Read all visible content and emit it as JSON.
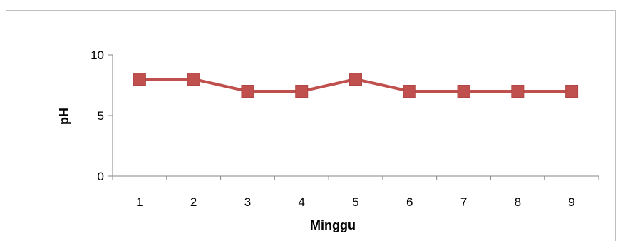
{
  "chart_data": {
    "type": "line",
    "title": "",
    "xlabel": "Minggu",
    "ylabel": "pH",
    "categories": [
      "1",
      "2",
      "3",
      "4",
      "5",
      "6",
      "7",
      "8",
      "9"
    ],
    "series": [
      {
        "values": [
          8,
          8,
          7,
          7,
          8,
          7,
          7,
          7,
          7
        ],
        "color": "#c0504d"
      }
    ],
    "ylim": [
      0,
      10
    ],
    "yticks": [
      "0",
      "5",
      "10"
    ],
    "grid": false,
    "legend": "none",
    "marker": "square"
  }
}
